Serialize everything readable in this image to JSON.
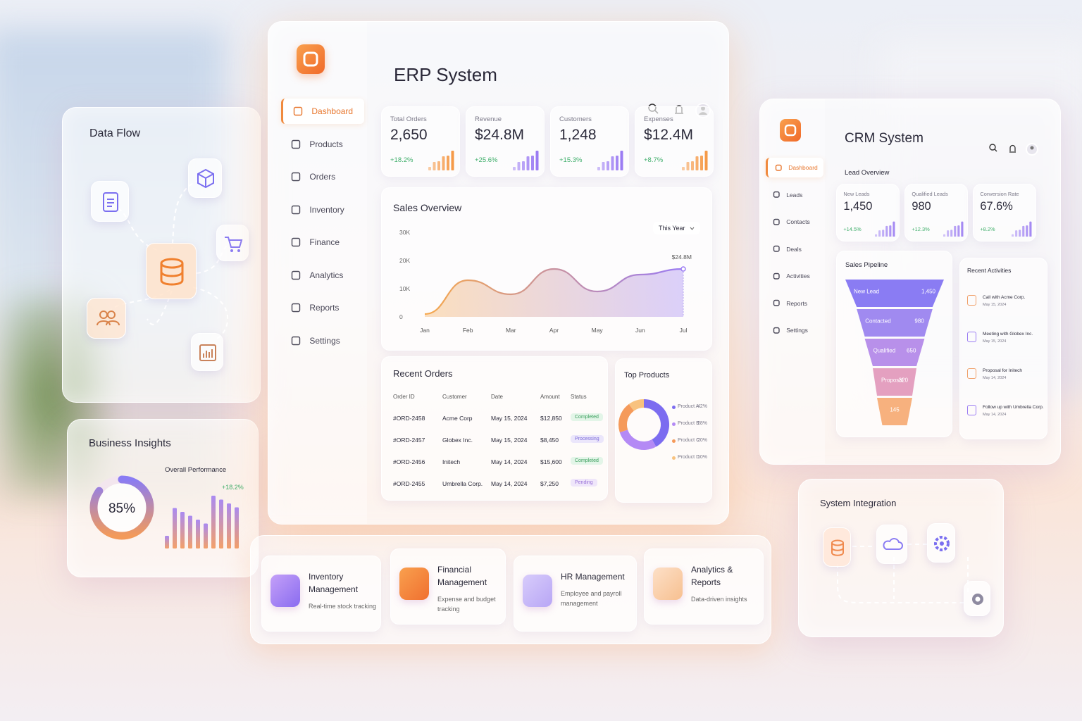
{
  "data_flow": {
    "title": "Data Flow"
  },
  "business_insights": {
    "title": "Business Insights",
    "gauge": {
      "value": 85,
      "label": "85%"
    },
    "subtitle": "Overall Performance",
    "change": "+18.2%"
  },
  "erp": {
    "title": "ERP System",
    "nav": [
      "Dashboard",
      "Products",
      "Orders",
      "Inventory",
      "Finance",
      "Analytics",
      "Reports",
      "Settings"
    ],
    "kpis": [
      {
        "label": "Total Orders",
        "value": "2,650",
        "change": "+18.2%"
      },
      {
        "label": "Revenue",
        "value": "$24.8M",
        "change": "+25.6%"
      },
      {
        "label": "Customers",
        "value": "1,248",
        "change": "+15.3%"
      },
      {
        "label": "Expenses",
        "value": "$12.4M",
        "change": "+8.7%"
      }
    ],
    "sales_overview": {
      "title": "Sales Overview",
      "period": "This Year",
      "chart_data": {
        "type": "line",
        "categories": [
          "Jan",
          "Feb",
          "Mar",
          "Apr",
          "May",
          "Jun",
          "Jul"
        ],
        "values": [
          1000,
          13000,
          8000,
          17000,
          9000,
          15000,
          17000
        ],
        "annotation": "$24.8M",
        "colors": [
          "#f6a84c",
          "#9b7cf3"
        ],
        "ylim": [
          0,
          30000
        ],
        "yticks": [
          0,
          {
            "value": 10000,
            "label": "10K"
          },
          {
            "value": 20000,
            "label": "20K"
          },
          {
            "value": 30000,
            "label": "30K"
          }
        ]
      }
    },
    "recent_orders": {
      "title": "Recent Orders",
      "columns": [
        "Order ID",
        "Customer",
        "Date",
        "Amount",
        "Status"
      ],
      "rows": [
        [
          "#ORD-2458",
          "Acme Corp",
          "May 15, 2024",
          "$12,850",
          "Completed"
        ],
        [
          "#ORD-2457",
          "Globex Inc.",
          "May 15, 2024",
          "$8,450",
          "Processing"
        ],
        [
          "#ORD-2456",
          "Initech",
          "May 14, 2024",
          "$15,600",
          "Completed"
        ],
        [
          "#ORD-2455",
          "Umbrella Corp.",
          "May 14, 2024",
          "$7,250",
          "Pending"
        ]
      ]
    },
    "top_products": {
      "title": "Top Products",
      "chart_data": {
        "type": "pie",
        "categories": [
          "Product A",
          "Product B",
          "Product C",
          "Product D"
        ],
        "values": [
          42,
          28,
          20,
          10
        ],
        "value_labels": [
          "42%",
          "28%",
          "20%",
          "10%"
        ],
        "colors": [
          "#7c6cf0",
          "#b48af5",
          "#f59a5a",
          "#f8c27e"
        ]
      }
    }
  },
  "crm": {
    "title": "CRM System",
    "nav": [
      "Dashboard",
      "Leads",
      "Contacts",
      "Deals",
      "Activities",
      "Reports",
      "Settings"
    ],
    "lead_overview": {
      "title": "Lead Overview",
      "kpis": [
        {
          "label": "New Leads",
          "value": "1,450",
          "change": "+14.5%"
        },
        {
          "label": "Qualified Leads",
          "value": "980",
          "change": "+12.3%"
        },
        {
          "label": "Conversion Rate",
          "value": "67.6%",
          "change": "+8.2%"
        }
      ]
    },
    "sales_pipeline": {
      "title": "Sales Pipeline",
      "chart_data": {
        "type": "funnel",
        "categories": [
          "New Lead",
          "Contacted",
          "Qualified",
          "Proposal",
          null
        ],
        "values": [
          1450,
          980,
          650,
          320,
          145
        ],
        "value_labels": [
          "1,450",
          "980",
          "650",
          "320",
          "145"
        ],
        "colors": [
          "#8a7cf3",
          "#a08af0",
          "#b890ea",
          "#e4a0c0",
          "#f7b17e"
        ]
      }
    },
    "recent_activities": {
      "title": "Recent Activities",
      "items": [
        {
          "title": "Call with Acme Corp.",
          "date": "May 15, 2024"
        },
        {
          "title": "Meeting with Globex Inc.",
          "date": "May 15, 2024"
        },
        {
          "title": "Proposal for Initech",
          "date": "May 14, 2024"
        },
        {
          "title": "Follow up with Umbrella Corp.",
          "date": "May 14, 2024"
        }
      ]
    }
  },
  "modules": [
    {
      "title": "Inventory Management",
      "description": "Real-time stock tracking"
    },
    {
      "title": "Financial Management",
      "description": "Expense and budget tracking"
    },
    {
      "title": "HR Management",
      "description": "Employee and payroll management"
    },
    {
      "title": "Analytics & Reports",
      "description": "Data-driven insights"
    }
  ],
  "system_integration": {
    "title": "System Integration"
  }
}
